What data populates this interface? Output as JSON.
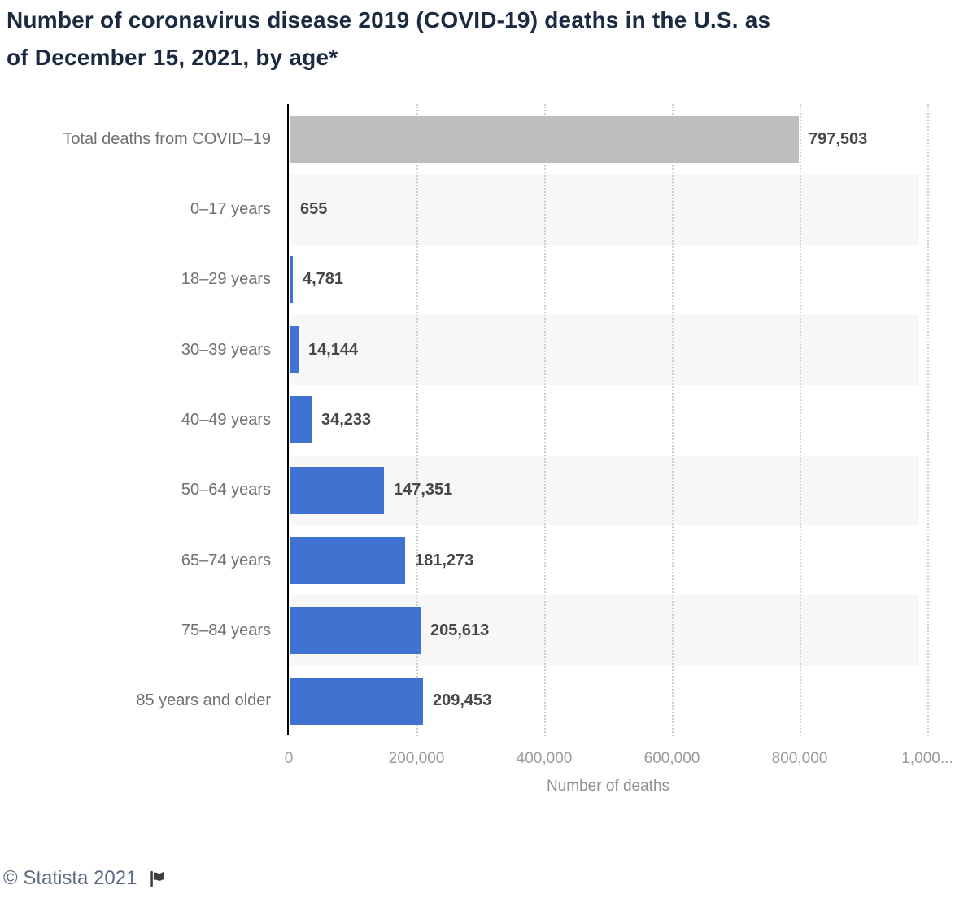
{
  "header": {
    "title_line1": "Number of coronavirus disease 2019 (COVID-19) deaths in the U.S. as",
    "title_line2": "of December 15, 2021, by age*"
  },
  "chart_data": {
    "type": "bar",
    "orientation": "horizontal",
    "title": "Number of coronavirus disease 2019 (COVID-19) deaths in the U.S. as of December 15, 2021, by age*",
    "categories": [
      "Total deaths from COVID–19",
      "0–17 years",
      "18–29 years",
      "30–39 years",
      "40–49 years",
      "50–64 years",
      "65–74 years",
      "75–84 years",
      "85 years and older"
    ],
    "values": [
      797503,
      655,
      4781,
      14144,
      34233,
      147351,
      181273,
      205613,
      209453
    ],
    "value_labels": [
      "797,503",
      "655",
      "4,781",
      "14,144",
      "34,233",
      "147,351",
      "181,273",
      "205,613",
      "209,453"
    ],
    "bar_colors": [
      "#bebebe",
      "#3f72d1",
      "#3f72d1",
      "#3f72d1",
      "#3f72d1",
      "#3f72d1",
      "#3f72d1",
      "#3f72d1",
      "#3f72d1"
    ],
    "xlabel": "Number of deaths",
    "x_ticks": [
      {
        "value": 0,
        "label": "0"
      },
      {
        "value": 200000,
        "label": "200,000"
      },
      {
        "value": 400000,
        "label": "400,000"
      },
      {
        "value": 600000,
        "label": "600,000"
      },
      {
        "value": 800000,
        "label": "800,000"
      },
      {
        "value": 1000000,
        "label": "1,000..."
      }
    ],
    "xlim": [
      0,
      1000000
    ],
    "grid": "vertical-dotted",
    "legend": "none",
    "row_band_color": "#f7f7f7",
    "banded_rows": [
      1,
      3,
      5,
      7
    ]
  },
  "footer": {
    "copyright": "© Statista 2021",
    "flag_icon": "statista-flag-icon"
  },
  "colors": {
    "title": "#1b2a41",
    "category_label": "#707070",
    "value_label": "#474747",
    "tick_label": "#9b9b9b",
    "axis_title": "#8f8f8f",
    "axis_line": "#000000",
    "gridline": "#d0d0d0",
    "footer_text": "#5b6a80",
    "flag": "#3d3d3d",
    "background": "#ffffff"
  }
}
